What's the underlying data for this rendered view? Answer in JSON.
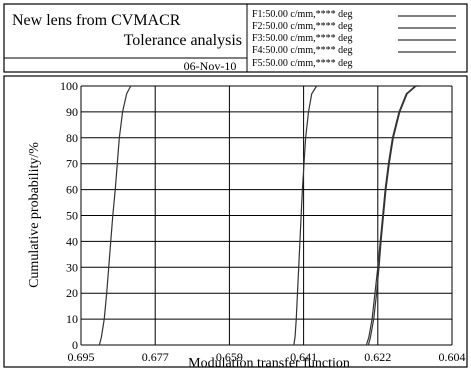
{
  "header": {
    "title_line1": "New lens from CVMACR",
    "title_line2": "Tolerance analysis",
    "date": "06-Nov-10",
    "legend": [
      "F1:50.00 c/mm,**** deg",
      "F2:50.00 c/mm,**** deg",
      "F3:50.00 c/mm,**** deg",
      "F4:50.00 c/mm,**** deg",
      "F5:50.00 c/mm,**** deg"
    ]
  },
  "colors": {
    "ink": "#000000",
    "background": "#ffffff",
    "curve": "#333333"
  },
  "chart_data": {
    "type": "line",
    "xlabel": "Modulation transfer function",
    "ylabel": "Cumulative probability/%",
    "x_ticks": [
      "0.695",
      "0.677",
      "0.659",
      "0.641",
      "0.622",
      "0.604"
    ],
    "y_ticks": [
      "0",
      "10",
      "20",
      "30",
      "40",
      "50",
      "60",
      "70",
      "80",
      "90",
      "100"
    ],
    "xlim": [
      0.695,
      0.604
    ],
    "ylim": [
      0,
      100
    ],
    "grid": true,
    "series": [
      {
        "x": [
          0.6905,
          0.69,
          0.6893,
          0.6887,
          0.6882,
          0.6877,
          0.6872,
          0.6866,
          0.6861,
          0.6856,
          0.6848,
          0.6838,
          0.6828,
          0.6822
        ],
        "y": [
          0,
          3,
          10,
          20,
          30,
          40,
          50,
          60,
          70,
          80,
          90,
          97,
          100,
          100
        ]
      },
      {
        "x": [
          0.6428,
          0.6425,
          0.6422,
          0.6419,
          0.6416,
          0.6413,
          0.641,
          0.6407,
          0.6403,
          0.6399,
          0.6392,
          0.6384,
          0.6372,
          0.6365
        ],
        "y": [
          0,
          3,
          10,
          20,
          30,
          40,
          50,
          60,
          70,
          80,
          90,
          97,
          100,
          100
        ]
      },
      {
        "x": [
          0.6245,
          0.624,
          0.6232,
          0.6225,
          0.6219,
          0.6214,
          0.6208,
          0.6202,
          0.6194,
          0.6184,
          0.6168,
          0.615,
          0.6128,
          0.6118
        ],
        "y": [
          0,
          3,
          10,
          20,
          30,
          40,
          50,
          60,
          70,
          80,
          90,
          97,
          100,
          100
        ]
      },
      {
        "x": [
          0.625,
          0.6244,
          0.6236,
          0.6229,
          0.6222,
          0.6216,
          0.621,
          0.6204,
          0.6196,
          0.6186,
          0.617,
          0.6152,
          0.613,
          0.612
        ],
        "y": [
          0,
          3,
          10,
          20,
          30,
          40,
          50,
          60,
          70,
          80,
          90,
          97,
          100,
          100
        ]
      }
    ]
  }
}
